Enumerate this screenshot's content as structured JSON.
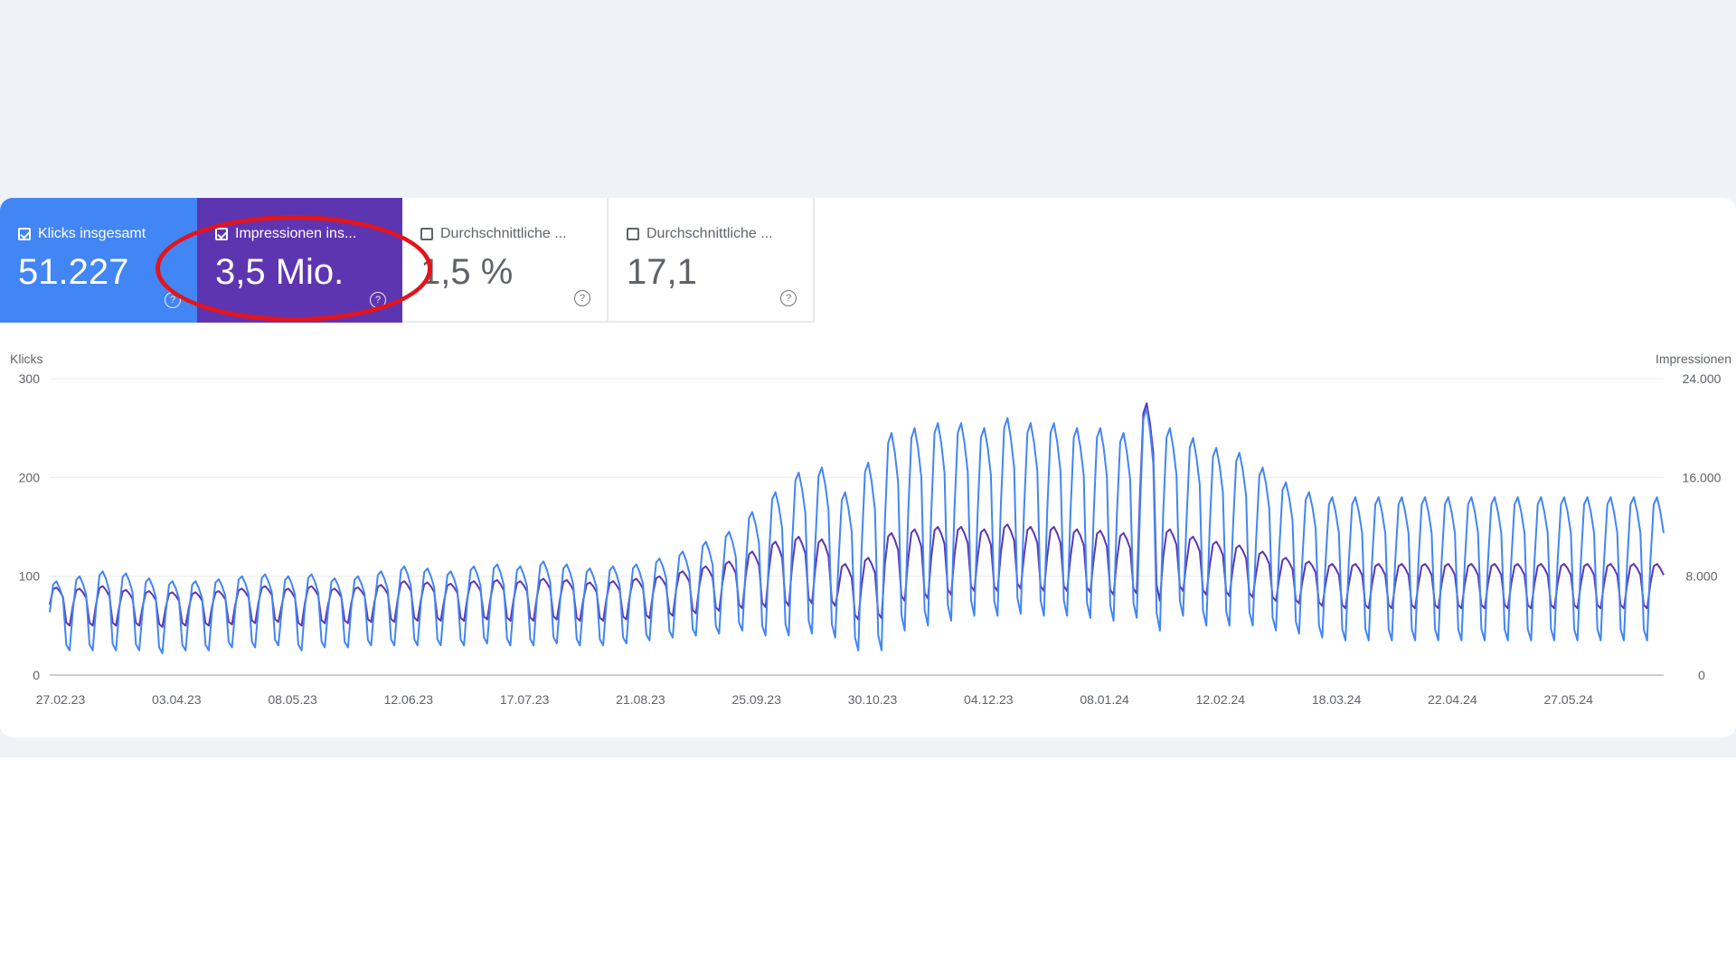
{
  "metrics": [
    {
      "label": "Klicks insgesamt",
      "value": "51.227",
      "checked": true,
      "color": "#4285f4"
    },
    {
      "label": "Impressionen ins...",
      "value": "3,5 Mio.",
      "checked": true,
      "color": "#5e35b1"
    },
    {
      "label": "Durchschnittliche ...",
      "value": "1,5 %",
      "checked": false
    },
    {
      "label": "Durchschnittliche ...",
      "value": "17,1",
      "checked": false
    }
  ],
  "help_glyph": "?",
  "highlight_color": "#e3141b",
  "chart_data": {
    "type": "line",
    "x_ticks": [
      "27.02.23",
      "03.04.23",
      "08.05.23",
      "12.06.23",
      "17.07.23",
      "21.08.23",
      "25.09.23",
      "30.10.23",
      "04.12.23",
      "08.01.24",
      "12.02.24",
      "18.03.24",
      "22.04.24",
      "27.05.24"
    ],
    "x_range": [
      "2023-02-27",
      "2024-06-28"
    ],
    "left_axis": {
      "label": "Klicks",
      "ticks": [
        "0",
        "100",
        "200",
        "300"
      ],
      "range": [
        0,
        300
      ]
    },
    "right_axis": {
      "label": "Impressionen",
      "ticks": [
        "0",
        "8.000",
        "16.000",
        "24.000"
      ],
      "range": [
        0,
        24000
      ]
    },
    "grid": true,
    "series": [
      {
        "name": "Klicks",
        "axis": "left",
        "color": "#4285f4",
        "weekly_peak": [
          95,
          100,
          105,
          103,
          98,
          95,
          95,
          97,
          100,
          102,
          100,
          102,
          98,
          100,
          105,
          110,
          108,
          105,
          110,
          112,
          110,
          115,
          112,
          108,
          110,
          112,
          118,
          125,
          135,
          145,
          165,
          185,
          205,
          210,
          185,
          215,
          245,
          250,
          255,
          255,
          250,
          260,
          255,
          255,
          250,
          250,
          245,
          270,
          250,
          240,
          230,
          225,
          210,
          195,
          185,
          180
        ],
        "weekly_trough": [
          25,
          25,
          25,
          25,
          22,
          25,
          25,
          28,
          28,
          30,
          25,
          28,
          28,
          30,
          30,
          30,
          30,
          30,
          32,
          30,
          30,
          32,
          30,
          30,
          32,
          35,
          38,
          40,
          42,
          45,
          40,
          40,
          42,
          38,
          25,
          25,
          45,
          50,
          55,
          60,
          60,
          62,
          60,
          60,
          58,
          55,
          58,
          45,
          60,
          50,
          50,
          50,
          45,
          42,
          38,
          35
        ]
      },
      {
        "name": "Impressionen",
        "axis": "right",
        "color": "#5e35b1",
        "weekly_peak": [
          7100,
          7000,
          7200,
          6900,
          6800,
          6700,
          6700,
          6800,
          7000,
          7200,
          7000,
          7200,
          7000,
          7100,
          7300,
          7600,
          7500,
          7400,
          7600,
          7700,
          7600,
          7800,
          7700,
          7500,
          7600,
          7800,
          8000,
          8400,
          8800,
          9200,
          10000,
          10800,
          11200,
          11000,
          9000,
          9500,
          11500,
          11800,
          12000,
          12000,
          11800,
          12200,
          12000,
          12000,
          11800,
          11700,
          11500,
          22000,
          11800,
          11200,
          10800,
          10500,
          10000,
          9500,
          9200,
          9000
        ],
        "weekly_trough": [
          4000,
          4000,
          4000,
          4000,
          3900,
          4000,
          4000,
          4100,
          4200,
          4300,
          4000,
          4200,
          4200,
          4300,
          4300,
          4400,
          4400,
          4400,
          4500,
          4400,
          4400,
          4500,
          4400,
          4400,
          4500,
          4600,
          4800,
          5000,
          5200,
          5400,
          5500,
          5600,
          5800,
          5600,
          4500,
          4600,
          6000,
          6200,
          6500,
          6800,
          6800,
          7000,
          6800,
          6800,
          6700,
          6500,
          6600,
          6000,
          6800,
          6500,
          6400,
          6300,
          6000,
          5800,
          5600,
          5400
        ]
      }
    ]
  }
}
